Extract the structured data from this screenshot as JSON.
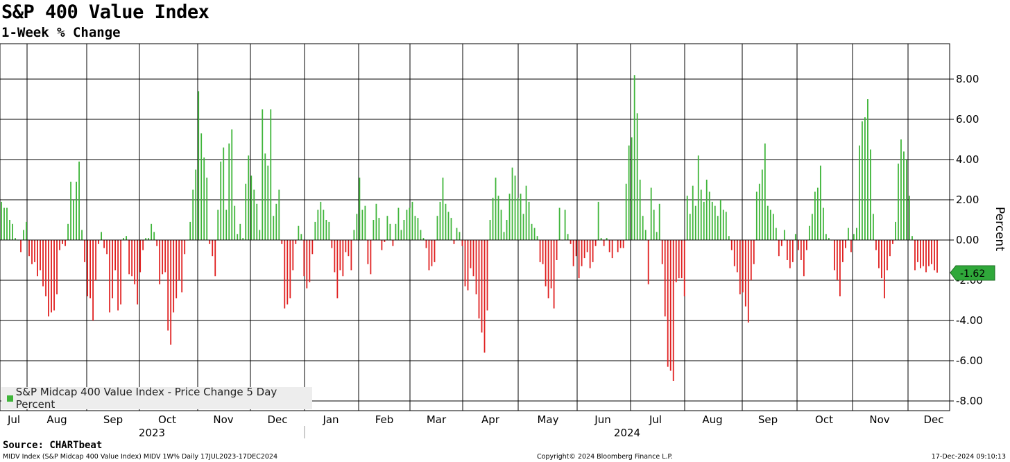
{
  "header": {
    "title": "S&P 400 Value Index",
    "subtitle": "1-Week % Change"
  },
  "footer": {
    "source": "Source: CHARTbeat",
    "ticker_info": "MIDV Index (S&P Midcap 400 Value Index) MIDV 1W%  Daily 17JUL2023-17DEC2024",
    "copyright": "Copyright© 2024 Bloomberg Finance L.P.",
    "timestamp": "17-Dec-2024 09:10:13"
  },
  "legend": {
    "label": "S&P Midcap 400 Value Index - Price Change 5 Day Percent"
  },
  "callout": {
    "value": "-1.62"
  },
  "colors": {
    "positive": "#3fb53a",
    "negative": "#e02020",
    "callout_bg": "#2fa83a",
    "grid": "#000000"
  },
  "chart_data": {
    "type": "bar",
    "title": "S&P 400 Value Index",
    "subtitle": "1-Week % Change",
    "ylabel": "Percent",
    "ylim": [
      -8.5,
      9.5
    ],
    "yticks": [
      "8.00",
      "6.00",
      "4.00",
      "2.00",
      "0.00",
      "-2.00",
      "-4.00",
      "-6.00",
      "-8.00"
    ],
    "ytick_values": [
      8,
      6,
      4,
      2,
      0,
      -2,
      -4,
      -6,
      -8
    ],
    "grid": true,
    "legend_position": "bottom-left",
    "months": [
      "Jul",
      "Aug",
      "Sep",
      "Oct",
      "Nov",
      "Dec",
      "Jan",
      "Feb",
      "Mar",
      "Apr",
      "May",
      "Jun",
      "Jul",
      "Aug",
      "Sep",
      "Oct",
      "Nov",
      "Dec"
    ],
    "years": [
      "2023",
      "2024"
    ],
    "last_value": -1.62,
    "series": [
      {
        "name": "S&P Midcap 400 Value Index - Price Change 5 Day Percent",
        "values": [
          1.9,
          1.6,
          1.6,
          1.0,
          0.8,
          0.1,
          0.0,
          -0.6,
          0.5,
          0.9,
          -0.8,
          -1.2,
          -1.1,
          -1.8,
          -1.5,
          -2.3,
          -2.8,
          -3.8,
          -3.6,
          -3.5,
          -2.7,
          -0.5,
          -0.2,
          -0.3,
          0.8,
          2.9,
          2.0,
          2.9,
          3.9,
          0.5,
          -1.1,
          -2.8,
          -2.9,
          -4.0,
          -2.0,
          -0.2,
          0.4,
          -0.4,
          -0.7,
          -3.6,
          -2.9,
          -1.5,
          -3.5,
          -3.2,
          0.1,
          0.2,
          -1.7,
          -1.8,
          -2.2,
          -3.2,
          -1.6,
          -0.5,
          0.1,
          0.1,
          0.8,
          0.4,
          -0.3,
          -2.2,
          -1.7,
          -1.6,
          -4.5,
          -5.2,
          -3.6,
          -2.9,
          -2.0,
          -2.6,
          -0.7,
          0.0,
          0.9,
          2.5,
          3.5,
          7.4,
          5.3,
          4.1,
          3.1,
          -0.2,
          -0.8,
          -1.8,
          1.5,
          3.9,
          4.6,
          1.5,
          4.8,
          5.5,
          1.7,
          0.3,
          0.8,
          0.1,
          2.8,
          4.2,
          3.2,
          2.5,
          1.8,
          0.5,
          6.5,
          4.3,
          3.7,
          6.5,
          1.2,
          1.8,
          2.5,
          -0.2,
          -3.4,
          -3.2,
          -2.9,
          -1.5,
          -0.2,
          0.7,
          0.3,
          -1.8,
          -2.4,
          -2.1,
          -0.7,
          0.9,
          1.5,
          1.9,
          1.5,
          1.0,
          0.9,
          -0.4,
          -1.6,
          -2.9,
          -1.5,
          -1.8,
          -0.6,
          -0.8,
          -1.5,
          0.5,
          1.3,
          3.1,
          1.5,
          1.7,
          -1.2,
          -1.7,
          1.0,
          1.8,
          1.1,
          -0.5,
          -0.1,
          1.2,
          0.8,
          -0.3,
          0.8,
          1.6,
          0.5,
          1.0,
          1.5,
          1.6,
          1.9,
          1.2,
          1.1,
          0.5,
          0.1,
          -0.4,
          -1.5,
          -1.3,
          -1.1,
          1.2,
          1.9,
          3.1,
          1.8,
          1.4,
          1.1,
          -0.2,
          0.6,
          0.4,
          -0.3,
          -2.3,
          -2.5,
          -1.4,
          -1.8,
          -2.7,
          -3.9,
          -4.6,
          -5.6,
          -3.5,
          1.0,
          2.1,
          3.1,
          2.2,
          1.5,
          0.4,
          1.0,
          2.3,
          3.6,
          3.2,
          2.1,
          2.3,
          1.3,
          2.7,
          1.9,
          0.8,
          0.6,
          0.2,
          -1.1,
          -1.2,
          -2.3,
          -2.9,
          -2.4,
          -3.4,
          -1.0,
          1.6,
          0.0,
          1.5,
          0.3,
          -0.2,
          -1.3,
          -0.8,
          -1.9,
          -1.3,
          -0.9,
          -0.6,
          -1.4,
          -1.1,
          -0.3,
          1.9,
          0.1,
          -0.3,
          0.1,
          -0.6,
          -0.9,
          0.0,
          -0.6,
          -0.4,
          -0.4,
          2.8,
          4.7,
          5.1,
          8.2,
          6.3,
          3.0,
          1.2,
          0.5,
          -2.2,
          2.6,
          1.5,
          0.4,
          1.8,
          -1.2,
          -3.8,
          -6.3,
          -6.5,
          -7.0,
          -2.1,
          -1.9,
          -1.9,
          -2.8,
          2.2,
          1.3,
          2.7,
          1.7,
          4.2,
          2.5,
          1.9,
          3.0,
          2.4,
          1.9,
          1.7,
          1.2,
          2.0,
          1.5,
          1.4,
          0.2,
          -0.5,
          -1.3,
          -1.6,
          -2.7,
          -2.6,
          -3.3,
          -4.1,
          -2.0,
          -1.2,
          2.4,
          2.8,
          3.5,
          4.8,
          1.7,
          1.5,
          1.3,
          0.6,
          -0.8,
          -0.3,
          0.5,
          -1.0,
          -1.4,
          -1.1,
          0.3,
          -0.5,
          -1.0,
          -1.8,
          -0.5,
          0.7,
          1.3,
          2.4,
          2.6,
          3.7,
          1.6,
          0.3,
          0.1,
          0.0,
          -1.5,
          -2.0,
          -2.8,
          -1.1,
          -0.4,
          0.6,
          -0.6,
          0.3,
          0.6,
          4.7,
          5.9,
          6.1,
          7.0,
          4.5,
          1.3,
          -0.5,
          -1.4,
          -1.9,
          -2.9,
          -1.5,
          -0.8,
          -0.2,
          0.9,
          3.8,
          5.0,
          4.4,
          4.0,
          2.2,
          0.2,
          -1.5,
          -1.1,
          -1.4,
          -1.3,
          -1.6,
          -1.3,
          -1.2,
          -1.5,
          -1.62
        ]
      }
    ]
  }
}
